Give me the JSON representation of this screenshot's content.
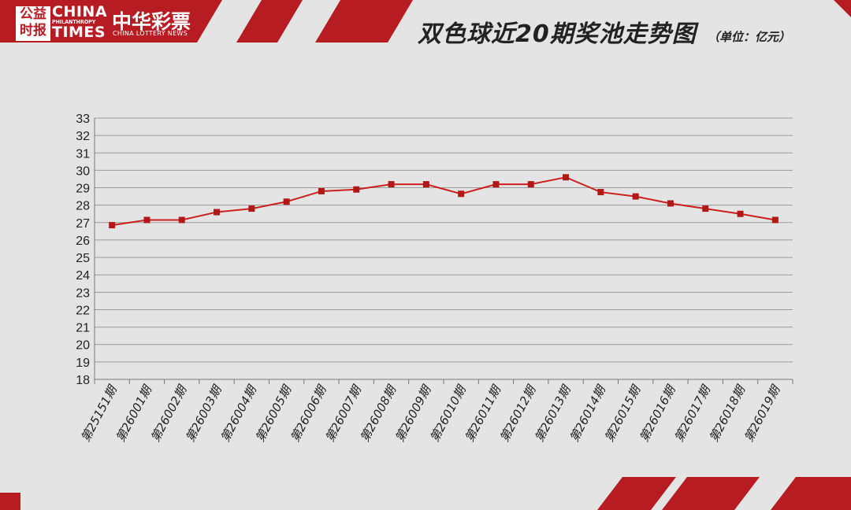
{
  "header": {
    "logo_box_top": "公益",
    "logo_box_bottom": "时报",
    "logo_en_line1": "CHINA",
    "logo_en_line2": "PHILANTHROPY",
    "logo_en_line3": "TIMES",
    "logo_cn": "中华彩票",
    "logo_cn_en": "CHINA LOTTERY NEWS",
    "title": "双色球近20期奖池走势图",
    "unit": "（单位：亿元）"
  },
  "colors": {
    "brand_red": "#b81c23",
    "line_red": "#cc1f1f",
    "background": "#e4e4e4",
    "grid": "#9a9a9a"
  },
  "chart_data": {
    "type": "line",
    "title": "双色球近20期奖池走势图",
    "ylabel": "",
    "xlabel": "",
    "ylim": [
      18,
      33
    ],
    "yticks": [
      18,
      19,
      20,
      21,
      22,
      23,
      24,
      25,
      26,
      27,
      28,
      29,
      30,
      31,
      32,
      33
    ],
    "grid": true,
    "legend": "none",
    "categories": [
      "第25151期",
      "第26001期",
      "第26002期",
      "第26003期",
      "第26004期",
      "第26005期",
      "第26006期",
      "第26007期",
      "第26008期",
      "第26009期",
      "第26010期",
      "第26011期",
      "第26012期",
      "第26013期",
      "第26014期",
      "第26015期",
      "第26016期",
      "第26017期",
      "第26018期",
      "第26019期"
    ],
    "values": [
      26.85,
      27.15,
      27.15,
      27.6,
      27.8,
      28.2,
      28.8,
      28.9,
      29.2,
      29.2,
      28.65,
      29.2,
      29.2,
      29.6,
      28.75,
      28.5,
      28.1,
      27.8,
      27.5,
      27.15
    ]
  }
}
